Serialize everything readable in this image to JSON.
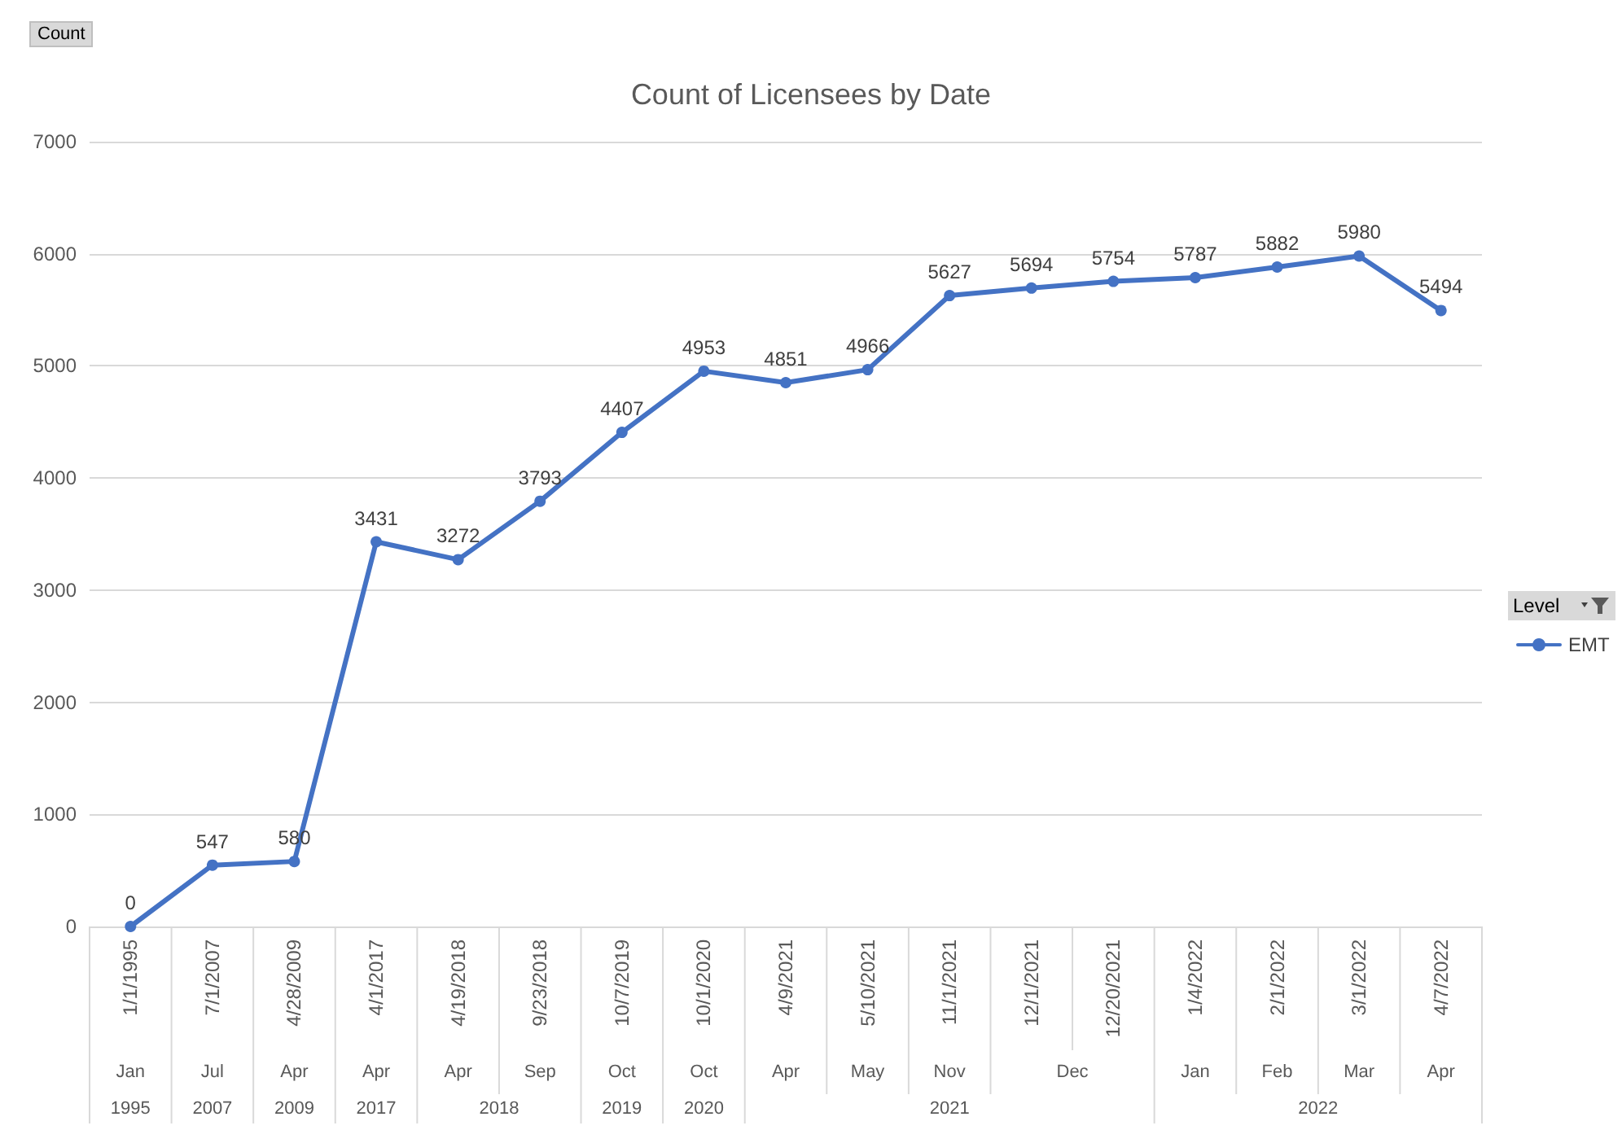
{
  "chart_data": {
    "type": "line",
    "title": "Count of Licensees by Date",
    "ylabel": "Count",
    "legend_title": "Level",
    "categories": [
      "1/1/1995",
      "7/1/2007",
      "4/28/2009",
      "4/1/2017",
      "4/19/2018",
      "9/23/2018",
      "10/7/2019",
      "10/1/2020",
      "4/9/2021",
      "5/10/2021",
      "11/1/2021",
      "12/1/2021",
      "12/20/2021",
      "1/4/2022",
      "2/1/2022",
      "3/1/2022",
      "4/7/2022"
    ],
    "series": [
      {
        "name": "EMT",
        "color": "#4472c4",
        "values": [
          0,
          547,
          580,
          3431,
          3272,
          3793,
          4407,
          4953,
          4851,
          4966,
          5627,
          5694,
          5754,
          5787,
          5882,
          5980,
          5494
        ]
      }
    ],
    "ylim": [
      0,
      7000
    ],
    "yticks": [
      0,
      1000,
      2000,
      3000,
      4000,
      5000,
      6000,
      7000
    ],
    "grid": "y",
    "legend": "right",
    "marker": "circle",
    "line_style": "solid",
    "data_labels": true,
    "annotations": [
      "Jan",
      "Jul",
      "Apr",
      "Apr",
      "Apr",
      "Sep",
      "Oct",
      "Oct",
      "Apr",
      "May",
      "Nov",
      "Dec",
      "Jan",
      "Feb",
      "Mar",
      "Apr",
      "1995",
      "2007",
      "2009",
      "2017",
      "2018",
      "2019",
      "2020",
      "2021",
      "2022"
    ]
  }
}
